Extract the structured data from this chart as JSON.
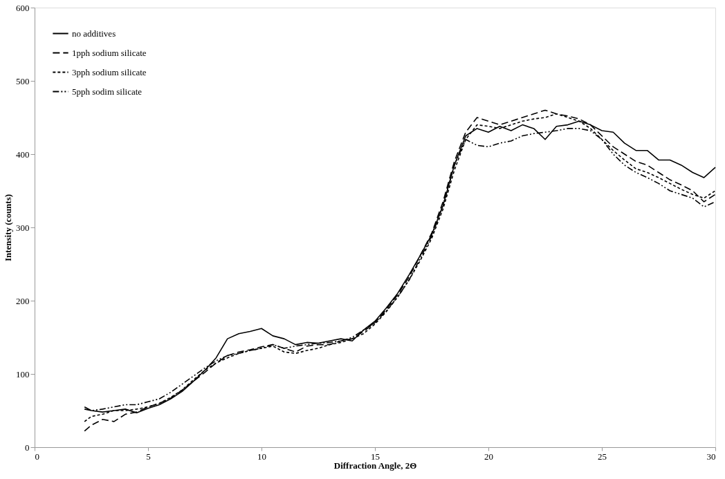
{
  "chart_data": {
    "type": "line",
    "xlabel": "Diffraction Angle, 2Θ",
    "ylabel": "Intensity (counts)",
    "x": [
      2.2,
      2.5,
      3,
      3.5,
      4,
      4.5,
      5,
      5.5,
      6,
      6.5,
      7,
      7.5,
      8,
      8.5,
      9,
      9.5,
      10,
      10.5,
      11,
      11.5,
      12,
      12.5,
      13,
      13.5,
      14,
      14.5,
      15,
      15.5,
      16,
      16.5,
      17,
      17.5,
      18,
      18.5,
      19,
      19.5,
      20,
      20.5,
      21,
      21.5,
      22,
      22.5,
      23,
      23.5,
      24,
      24.5,
      25,
      25.5,
      26,
      26.5,
      27,
      27.5,
      28,
      28.5,
      29,
      29.5,
      30
    ],
    "xlim": [
      0,
      30
    ],
    "xticks": [
      0,
      5,
      10,
      15,
      20,
      25,
      30
    ],
    "ylim": [
      0,
      600
    ],
    "yticks": [
      0,
      100,
      200,
      300,
      400,
      500,
      600
    ],
    "grid": false,
    "legend": "top left",
    "marker": "none",
    "series": [
      {
        "name": "no additives",
        "color": "#000000",
        "line_style": "solid",
        "values": [
          55,
          50,
          48,
          50,
          52,
          47,
          53,
          58,
          66,
          76,
          90,
          105,
          122,
          148,
          155,
          158,
          162,
          152,
          148,
          140,
          143,
          142,
          145,
          148,
          145,
          160,
          172,
          190,
          210,
          235,
          262,
          290,
          330,
          385,
          425,
          435,
          430,
          438,
          432,
          440,
          435,
          420,
          438,
          440,
          445,
          440,
          432,
          430,
          415,
          405,
          405,
          392,
          392,
          385,
          375,
          368,
          382
        ]
      },
      {
        "name": "1pph sodium silicate",
        "color": "#000000",
        "line_style": "dashed",
        "values": [
          22,
          30,
          38,
          35,
          45,
          48,
          55,
          60,
          67,
          78,
          90,
          102,
          115,
          125,
          130,
          133,
          137,
          140,
          135,
          130,
          138,
          140,
          140,
          145,
          148,
          158,
          170,
          188,
          208,
          232,
          262,
          292,
          335,
          390,
          430,
          450,
          445,
          440,
          445,
          450,
          455,
          460,
          455,
          452,
          448,
          440,
          425,
          410,
          400,
          390,
          385,
          375,
          365,
          358,
          350,
          335,
          345
        ]
      },
      {
        "name": "3pph sodium silicate",
        "color": "#000000",
        "line_style": "dotted",
        "values": [
          35,
          42,
          45,
          50,
          50,
          52,
          55,
          60,
          68,
          78,
          92,
          105,
          115,
          122,
          128,
          132,
          135,
          138,
          130,
          128,
          132,
          135,
          140,
          143,
          148,
          155,
          168,
          185,
          205,
          228,
          255,
          285,
          325,
          378,
          420,
          440,
          438,
          435,
          440,
          445,
          448,
          450,
          455,
          450,
          445,
          435,
          420,
          405,
          392,
          380,
          375,
          368,
          360,
          352,
          345,
          340,
          350
        ]
      },
      {
        "name": "5pph sodim silicate",
        "color": "#000000",
        "line_style": "dashdot",
        "values": [
          52,
          50,
          52,
          55,
          58,
          58,
          62,
          66,
          75,
          86,
          97,
          108,
          118,
          125,
          128,
          132,
          135,
          140,
          135,
          138,
          140,
          142,
          143,
          145,
          150,
          160,
          170,
          186,
          205,
          228,
          258,
          288,
          330,
          385,
          420,
          412,
          410,
          415,
          418,
          425,
          428,
          430,
          432,
          435,
          435,
          432,
          420,
          400,
          385,
          375,
          368,
          360,
          350,
          345,
          340,
          328,
          335
        ]
      }
    ]
  }
}
